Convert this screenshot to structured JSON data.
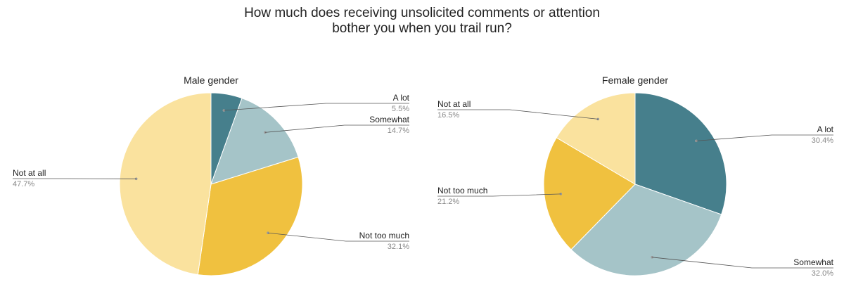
{
  "title_line1": "How much does receiving unsolicited comments or attention",
  "title_line2": "bother you when you trail run?",
  "chart_data": [
    {
      "type": "pie",
      "title": "Male gender",
      "slices": [
        {
          "label": "A lot",
          "value": 5.5,
          "pct_label": "5.5%",
          "color": "#467f8c"
        },
        {
          "label": "Somewhat",
          "value": 14.7,
          "pct_label": "14.7%",
          "color": "#a5c4c8"
        },
        {
          "label": "Not too much",
          "value": 32.1,
          "pct_label": "32.1%",
          "color": "#f0c13f"
        },
        {
          "label": "Not at all",
          "value": 47.7,
          "pct_label": "47.7%",
          "color": "#fae29e"
        }
      ]
    },
    {
      "type": "pie",
      "title": "Female gender",
      "slices": [
        {
          "label": "A lot",
          "value": 30.4,
          "pct_label": "30.4%",
          "color": "#467f8c"
        },
        {
          "label": "Somewhat",
          "value": 32.0,
          "pct_label": "32.0%",
          "color": "#a5c4c8"
        },
        {
          "label": "Not too much",
          "value": 21.2,
          "pct_label": "21.2%",
          "color": "#f0c13f"
        },
        {
          "label": "Not at all",
          "value": 16.5,
          "pct_label": "16.5%",
          "color": "#fae29e"
        }
      ]
    }
  ]
}
